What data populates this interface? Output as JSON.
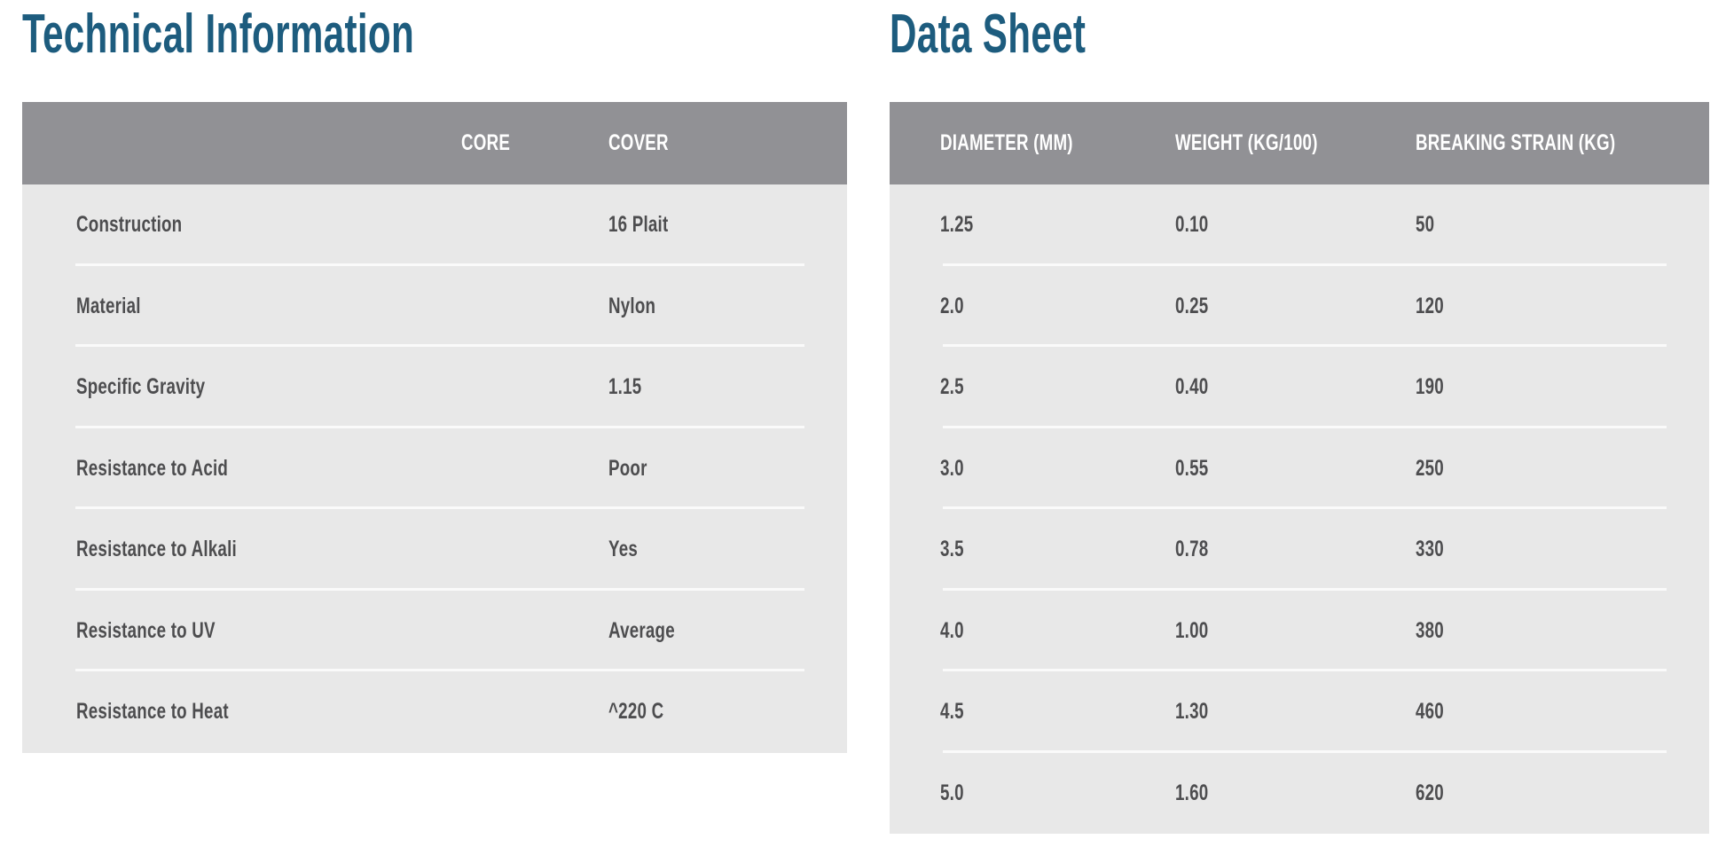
{
  "colors": {
    "title": "#1d5c7e",
    "header_bg": "#919195",
    "body_bg": "#e8e8e8",
    "body_text": "#4d4d4f",
    "header_text": "#ffffff",
    "divider": "#fafafa"
  },
  "technical_information": {
    "title": "Technical Information",
    "columns": {
      "core": "CORE",
      "cover": "COVER"
    },
    "rows": [
      {
        "label": "Construction",
        "core": "",
        "cover": "16 Plait"
      },
      {
        "label": "Material",
        "core": "",
        "cover": "Nylon"
      },
      {
        "label": "Specific Gravity",
        "core": "",
        "cover": "1.15"
      },
      {
        "label": "Resistance to Acid",
        "core": "",
        "cover": "Poor"
      },
      {
        "label": "Resistance to Alkali",
        "core": "",
        "cover": "Yes"
      },
      {
        "label": "Resistance to UV",
        "core": "",
        "cover": "Average"
      },
      {
        "label": "Resistance to Heat",
        "core": "",
        "cover": "^220 C"
      }
    ]
  },
  "data_sheet": {
    "title": "Data Sheet",
    "columns": {
      "diameter": "DIAMETER (MM)",
      "weight": "WEIGHT (KG/100)",
      "breaking_strain": "BREAKING STRAIN (KG)"
    },
    "rows": [
      {
        "diameter": "1.25",
        "weight": "0.10",
        "breaking_strain": "50"
      },
      {
        "diameter": "2.0",
        "weight": "0.25",
        "breaking_strain": "120"
      },
      {
        "diameter": "2.5",
        "weight": "0.40",
        "breaking_strain": "190"
      },
      {
        "diameter": "3.0",
        "weight": "0.55",
        "breaking_strain": "250"
      },
      {
        "diameter": "3.5",
        "weight": "0.78",
        "breaking_strain": "330"
      },
      {
        "diameter": "4.0",
        "weight": "1.00",
        "breaking_strain": "380"
      },
      {
        "diameter": "4.5",
        "weight": "1.30",
        "breaking_strain": "460"
      },
      {
        "diameter": "5.0",
        "weight": "1.60",
        "breaking_strain": "620"
      }
    ]
  }
}
